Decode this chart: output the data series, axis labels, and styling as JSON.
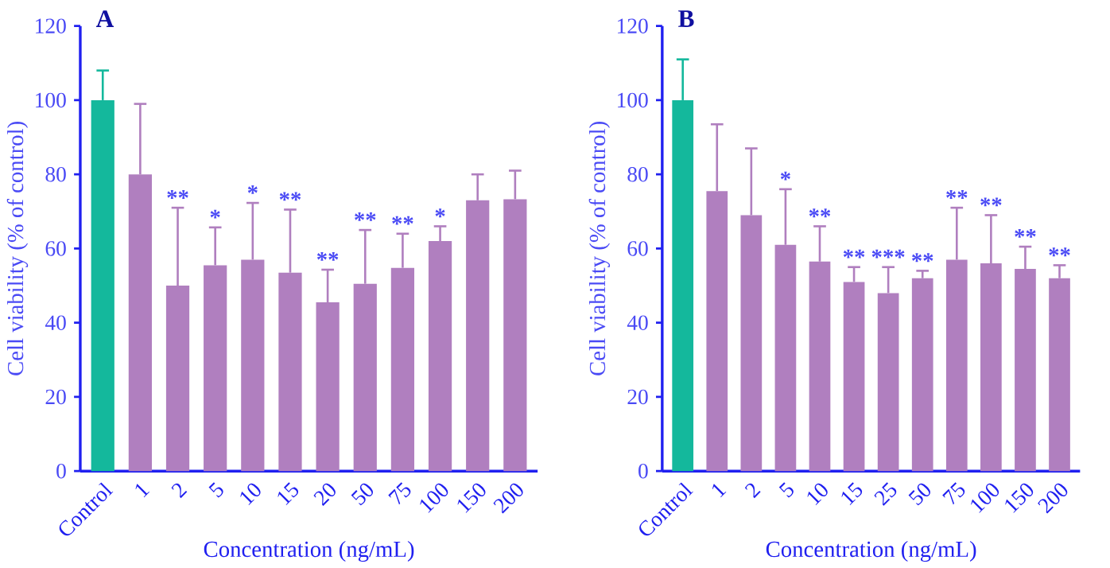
{
  "chart_data": [
    {
      "type": "bar",
      "title": "A",
      "xlabel": "Concentration (ng/mL)",
      "ylabel": "Cell viability (% of control)",
      "categories": [
        "Control",
        "1",
        "2",
        "5",
        "10",
        "15",
        "20",
        "50",
        "75",
        "100",
        "150",
        "200"
      ],
      "values": [
        100,
        80,
        50,
        55.5,
        57,
        53.5,
        45.5,
        50.5,
        54.8,
        62,
        73,
        73.3
      ],
      "colors": [
        "#14b89c",
        "#b07fbf",
        "#b07fbf",
        "#b07fbf",
        "#b07fbf",
        "#b07fbf",
        "#b07fbf",
        "#b07fbf",
        "#b07fbf",
        "#b07fbf",
        "#b07fbf",
        "#b07fbf"
      ],
      "errors": [
        [
          100,
          108
        ],
        [
          80,
          99
        ],
        [
          50,
          71
        ],
        [
          55.5,
          65.7
        ],
        [
          57,
          72.3
        ],
        [
          53.5,
          70.5
        ],
        [
          45.5,
          54.3
        ],
        [
          50.5,
          65
        ],
        [
          54.8,
          64
        ],
        [
          62,
          66
        ],
        [
          73,
          80
        ],
        [
          73.3,
          81
        ]
      ],
      "ylim": [
        0,
        120
      ],
      "yticks": [
        0,
        20,
        40,
        60,
        80,
        100,
        120
      ],
      "annotations": [
        {
          "text": "**",
          "x": "2",
          "y": 71
        },
        {
          "text": "*",
          "x": "5",
          "y": 65.7
        },
        {
          "text": "*",
          "x": "10",
          "y": 72.3
        },
        {
          "text": "**",
          "x": "15",
          "y": 70.5
        },
        {
          "text": "**",
          "x": "20",
          "y": 54.3
        },
        {
          "text": "**",
          "x": "50",
          "y": 65
        },
        {
          "text": "**",
          "x": "75",
          "y": 64
        },
        {
          "text": "*",
          "x": "100",
          "y": 66
        }
      ]
    },
    {
      "type": "bar",
      "title": "B",
      "xlabel": "Concentration (ng/mL)",
      "ylabel": "Cell viability (% of control)",
      "categories": [
        "Control",
        "1",
        "2",
        "5",
        "10",
        "15",
        "25",
        "50",
        "75",
        "100",
        "150",
        "200"
      ],
      "values": [
        100,
        75.5,
        69,
        61,
        56.5,
        51,
        48,
        52,
        57,
        56,
        54.5,
        52
      ],
      "colors": [
        "#14b89c",
        "#b07fbf",
        "#b07fbf",
        "#b07fbf",
        "#b07fbf",
        "#b07fbf",
        "#b07fbf",
        "#b07fbf",
        "#b07fbf",
        "#b07fbf",
        "#b07fbf",
        "#b07fbf"
      ],
      "errors": [
        [
          100,
          111
        ],
        [
          75.5,
          93.5
        ],
        [
          69,
          87
        ],
        [
          61,
          76
        ],
        [
          56.5,
          66
        ],
        [
          51,
          55
        ],
        [
          48,
          55
        ],
        [
          52,
          54
        ],
        [
          57,
          71
        ],
        [
          56,
          69
        ],
        [
          54.5,
          60.5
        ],
        [
          52,
          55.5
        ]
      ],
      "ylim": [
        0,
        120
      ],
      "yticks": [
        0,
        20,
        40,
        60,
        80,
        100,
        120
      ],
      "annotations": [
        {
          "text": "*",
          "x": "5",
          "y": 76
        },
        {
          "text": "**",
          "x": "10",
          "y": 66
        },
        {
          "text": "**",
          "x": "15",
          "y": 55
        },
        {
          "text": "***",
          "x": "25",
          "y": 55
        },
        {
          "text": "**",
          "x": "50",
          "y": 54
        },
        {
          "text": "**",
          "x": "75",
          "y": 71
        },
        {
          "text": "**",
          "x": "100",
          "y": 69
        },
        {
          "text": "**",
          "x": "150",
          "y": 60.5
        },
        {
          "text": "**",
          "x": "200",
          "y": 55.5
        }
      ]
    }
  ]
}
